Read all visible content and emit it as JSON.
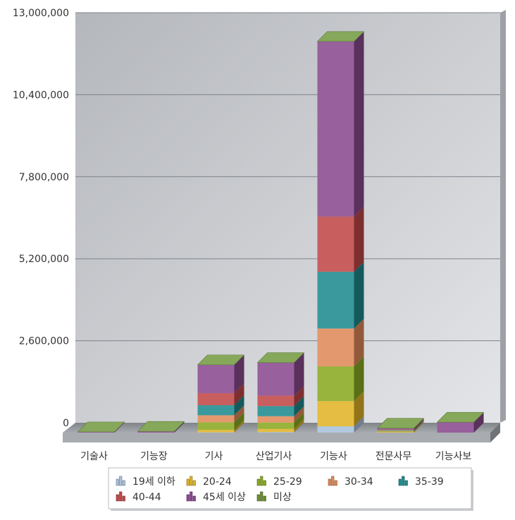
{
  "chart_data": {
    "type": "bar",
    "stacked": true,
    "three_d": true,
    "categories": [
      "기술사",
      "기능장",
      "기사",
      "산업기사",
      "기능사",
      "전문사무",
      "기능사보"
    ],
    "ylim": [
      0,
      13000000
    ],
    "yticks": [
      0,
      2600000,
      5200000,
      7800000,
      10400000,
      13000000
    ],
    "ytick_labels": [
      "0",
      "2,600,000",
      "5,200,000",
      "7,800,000",
      "10,400,000",
      "13,000,000"
    ],
    "grid": true,
    "legend_position": "bottom",
    "series": [
      {
        "name": "19세 이하",
        "color": "#a9c2dc",
        "values": [
          0,
          0,
          10000,
          20000,
          200000,
          5000,
          0
        ]
      },
      {
        "name": "20-24",
        "color": "#e0b428",
        "values": [
          0,
          0,
          80000,
          100000,
          800000,
          20000,
          0
        ]
      },
      {
        "name": "25-29",
        "color": "#8aaa22",
        "values": [
          0,
          0,
          240000,
          200000,
          1100000,
          20000,
          0
        ]
      },
      {
        "name": "30-34",
        "color": "#e08a5a",
        "values": [
          0,
          0,
          220000,
          200000,
          1200000,
          20000,
          0
        ]
      },
      {
        "name": "35-39",
        "color": "#1f8b8f",
        "values": [
          0,
          0,
          320000,
          320000,
          1800000,
          20000,
          0
        ]
      },
      {
        "name": "40-44",
        "color": "#c04848",
        "values": [
          0,
          0,
          380000,
          330000,
          1750000,
          20000,
          0
        ]
      },
      {
        "name": "45세 이상",
        "color": "#8a4a8e",
        "values": [
          25000,
          40000,
          900000,
          1050000,
          5550000,
          35000,
          330000
        ]
      },
      {
        "name": "미상",
        "color": "#6a9030",
        "values": [
          0,
          0,
          0,
          0,
          0,
          0,
          0
        ]
      }
    ]
  },
  "icons": {
    "legend_marker": "bar-chart-icon"
  }
}
